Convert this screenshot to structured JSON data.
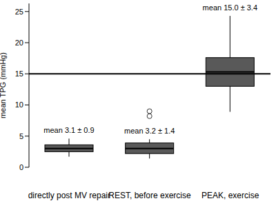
{
  "chart_data": {
    "type": "box",
    "y_label": "mean TPG (mmHg)",
    "categories": [
      "directly post MV repair",
      "REST, before exercise",
      "PEAK, exercise"
    ],
    "boxes": [
      {
        "min": 1.7,
        "q1": 2.5,
        "median": 3.0,
        "q3": 3.6,
        "max": 4.6,
        "outliers": []
      },
      {
        "min": 1.4,
        "q1": 2.2,
        "median": 3.0,
        "q3": 3.9,
        "max": 4.5,
        "outliers": [
          8.2,
          9.0
        ]
      },
      {
        "min": 8.9,
        "q1": 13.0,
        "median": 15.3,
        "q3": 17.6,
        "max": 24.3,
        "outliers": []
      }
    ],
    "annotations": [
      "mean 3.1 ± 0.9",
      "mean 3.2 ± 1.4",
      "mean 15.0 ± 3.4"
    ],
    "hline": 15,
    "ylim": [
      0,
      26.3
    ],
    "yticks": [
      0,
      5,
      10,
      15,
      20,
      25
    ],
    "color": "#595959",
    "grid": false
  }
}
